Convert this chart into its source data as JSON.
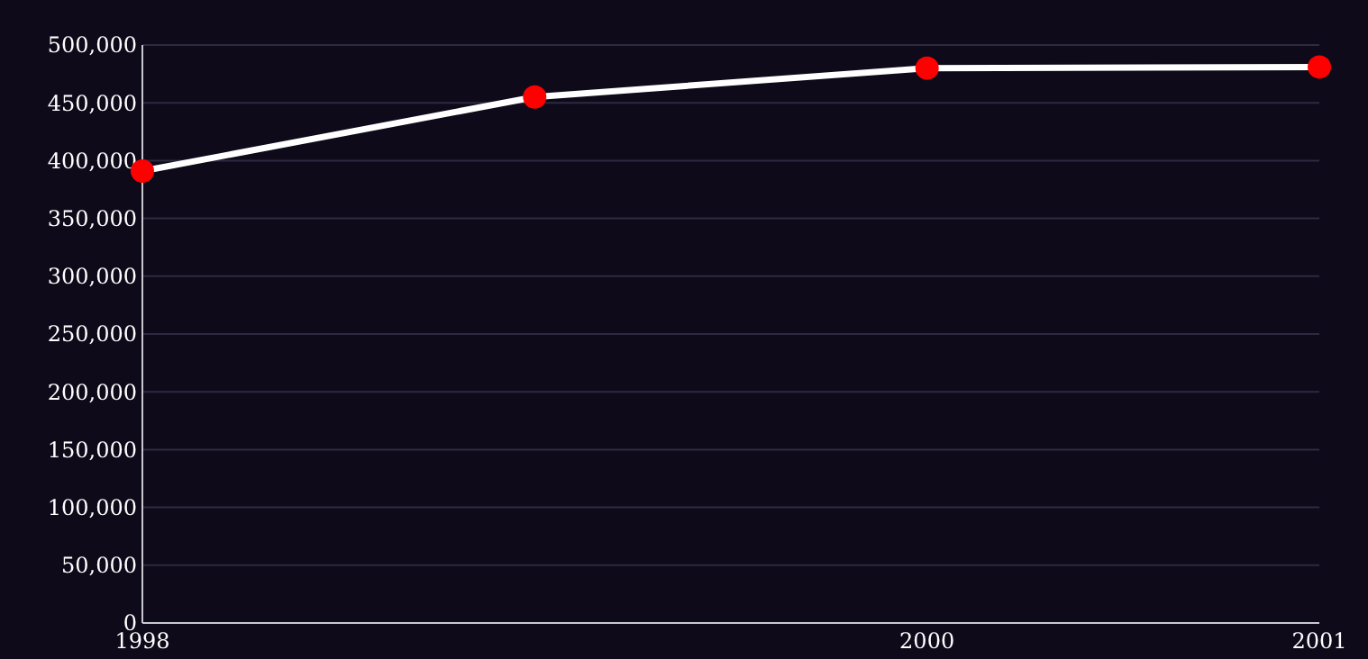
{
  "chart_data": {
    "type": "line",
    "x": [
      1998,
      1999,
      2000,
      2001
    ],
    "series": [
      {
        "color": "#ffffff",
        "values": [
          391000,
          455000,
          480000,
          481000
        ]
      }
    ],
    "xlim": [
      1998,
      2001
    ],
    "xticks": [
      1998,
      2000,
      2001
    ],
    "ylim": [
      0,
      500000
    ],
    "yticks": [
      {
        "value": 0,
        "label": "0"
      },
      {
        "value": 50000,
        "label": "50,000"
      },
      {
        "value": 100000,
        "label": "100,000"
      },
      {
        "value": 150000,
        "label": "150,000"
      },
      {
        "value": 200000,
        "label": "200,000"
      },
      {
        "value": 250000,
        "label": "250,000"
      },
      {
        "value": 300000,
        "label": "300,000"
      },
      {
        "value": 350000,
        "label": "350,000"
      },
      {
        "value": 400000,
        "label": "400,000"
      },
      {
        "value": 450000,
        "label": "450,000"
      },
      {
        "value": 500000,
        "label": "500,000"
      }
    ],
    "grid": "y",
    "marker": "circle",
    "line_style": "solid"
  }
}
